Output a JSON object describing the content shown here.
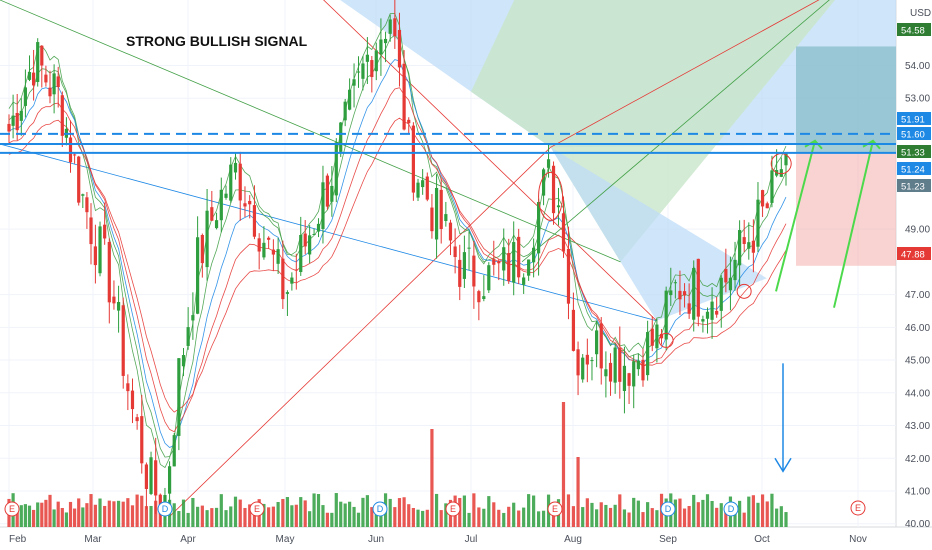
{
  "chart_data": {
    "type": "candlestick",
    "title": "STRONG BULLISH SIGNAL",
    "currency": "USD",
    "ylim": [
      39.9,
      56.0
    ],
    "y_ticks": [
      40.0,
      41.0,
      42.0,
      43.0,
      44.0,
      45.0,
      46.0,
      47.0,
      49.0,
      53.0,
      54.0
    ],
    "x_labels": [
      "Feb",
      "Mar",
      "Apr",
      "May",
      "Jun",
      "Jul",
      "Aug",
      "Sep",
      "Oct",
      "Nov"
    ],
    "price_tags": [
      {
        "value": "54.58",
        "color": "#2e7d32"
      },
      {
        "value": "51.91",
        "color": "#1e88e5"
      },
      {
        "value": "51.60",
        "color": "#1e88e5"
      },
      {
        "value": "51.33",
        "color": "#2e7d32"
      },
      {
        "value": "51.24",
        "color": "#1e88e5"
      },
      {
        "value": "51.23",
        "color": "#607d8b"
      },
      {
        "value": "47.88",
        "color": "#e53935"
      }
    ],
    "horizontal_levels": [
      {
        "value": 51.91,
        "style": "dashed",
        "color": "#1e88e5"
      },
      {
        "value": 51.6,
        "style": "solid",
        "color": "#1e88e5"
      },
      {
        "value": 51.33,
        "style": "solid",
        "color": "#1e88e5"
      }
    ],
    "events": [
      {
        "label": "E",
        "date": "Feb"
      },
      {
        "label": "D",
        "date": "Mar"
      },
      {
        "label": "E",
        "date": "Apr"
      },
      {
        "label": "D",
        "date": "Jun"
      },
      {
        "label": "E",
        "date": "Jul"
      },
      {
        "label": "D",
        "date": "Sep"
      },
      {
        "label": "E",
        "date": "Oct"
      }
    ],
    "colors": {
      "up": "#26a69a",
      "up_fill": "#2e9e3e",
      "down": "#e53935",
      "ema_green": "#43a047",
      "ema_red": "#e53935",
      "ema_blue": "#1e88e5"
    }
  }
}
